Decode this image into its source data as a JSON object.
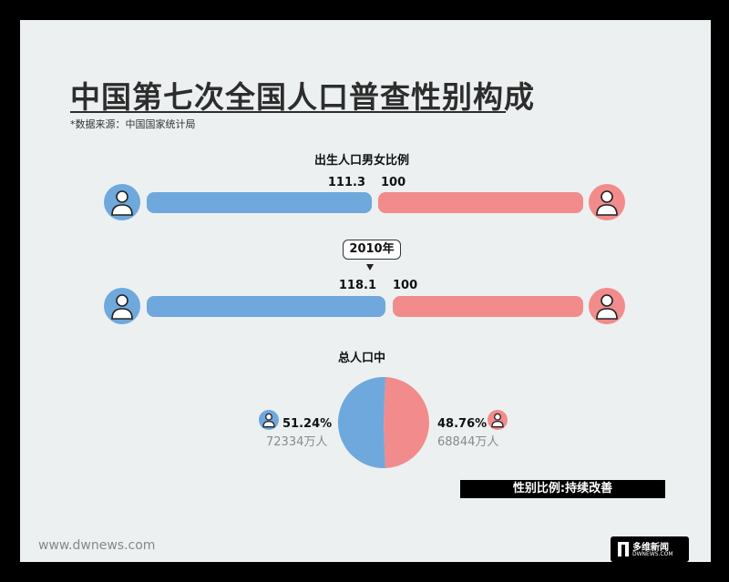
{
  "title": "中国第七次全国人口普查性别构成",
  "source": "*数据来源：中国国家统计局",
  "birth_ratio": {
    "heading": "出生人口男女比例",
    "male": "111.3",
    "female": "100"
  },
  "ratio_2010": {
    "year_label": "2010年",
    "male": "118.1",
    "female": "100"
  },
  "population": {
    "heading": "总人口中",
    "male_pct": "51.24%",
    "male_count": "72334万人",
    "female_pct": "48.76%",
    "female_count": "68844万人"
  },
  "banner": "性别比例:持续改善",
  "footer": {
    "url": "www.dwnews.com",
    "logo_text": "多维新闻",
    "logo_sub": "DWNEWS.COM"
  },
  "colors": {
    "male": "#6fa8dc",
    "female": "#f28b8b",
    "background": "#ecf0f1"
  },
  "icons": {
    "male": "person-icon",
    "female": "person-icon"
  },
  "chart_data": [
    {
      "type": "bar",
      "title": "出生人口男女比例",
      "categories": [
        "男",
        "女"
      ],
      "values": [
        111.3,
        100
      ]
    },
    {
      "type": "bar",
      "title": "2010年",
      "categories": [
        "男",
        "女"
      ],
      "values": [
        118.1,
        100
      ]
    },
    {
      "type": "pie",
      "title": "总人口中",
      "categories": [
        "男",
        "女"
      ],
      "values": [
        51.24,
        48.76
      ],
      "counts": [
        "72334万人",
        "68844万人"
      ]
    }
  ]
}
